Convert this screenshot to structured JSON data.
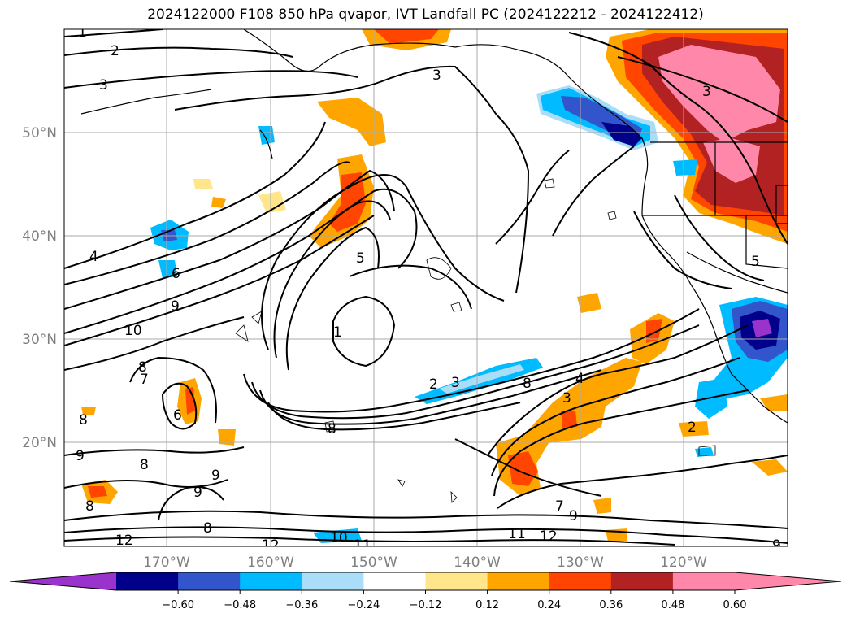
{
  "title": "2024122000 F108 850 hPa qvapor, IVT Landfall PC (2024122212 - 2024122412)",
  "lat_labels": [
    "50°N",
    "40°N",
    "30°N",
    "20°N"
  ],
  "lon_labels": [
    "170°W",
    "160°W",
    "150°W",
    "140°W",
    "130°W",
    "120°W"
  ],
  "colorbar": {
    "colors": [
      "#9933cc",
      "#00008b",
      "#3355cc",
      "#00bbff",
      "#aaddf7",
      "#ffffff",
      "#ffe68a",
      "#ffa500",
      "#ff4500",
      "#b22222",
      "#ff88aa",
      "#ff88aa"
    ],
    "ticks": [
      "−0.60",
      "−0.48",
      "−0.36",
      "−0.24",
      "−0.12",
      "0.12",
      "0.24",
      "0.36",
      "0.48",
      "0.60"
    ]
  },
  "contour_labels": [
    "1",
    "2",
    "3",
    "3",
    "3",
    "4",
    "5",
    "6",
    "9",
    "10",
    "8",
    "8",
    "7",
    "6",
    "8",
    "9",
    "8",
    "9",
    "8",
    "9",
    "8",
    "2",
    "3",
    "4",
    "3",
    "7",
    "9",
    "11",
    "12",
    "10",
    "11",
    "12",
    "12",
    "2",
    "5",
    "8",
    "1",
    "9"
  ]
}
